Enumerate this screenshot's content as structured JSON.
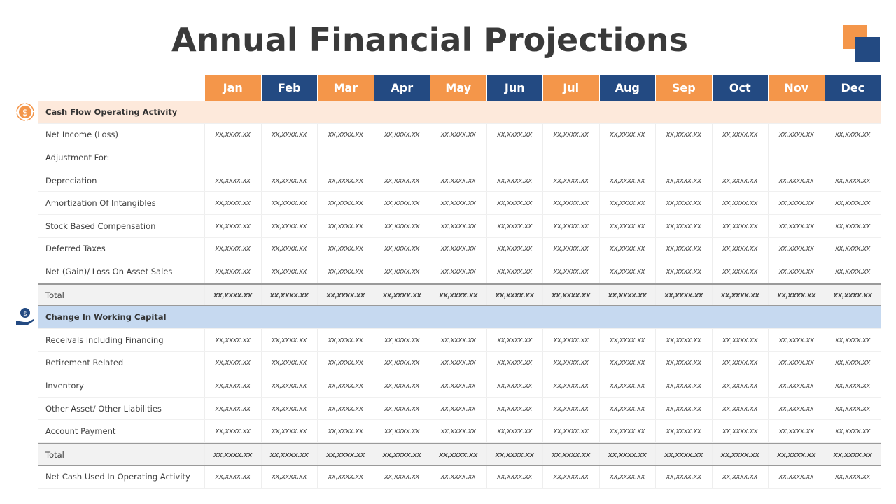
{
  "title": "Annual Financial Projections",
  "months": [
    "Jan",
    "Feb",
    "Mar",
    "Apr",
    "May",
    "Jun",
    "Jul",
    "Aug",
    "Sep",
    "Oct",
    "Nov",
    "Dec"
  ],
  "colors": {
    "orange": "#F4964A",
    "blue": "#234A82",
    "section_orange": "#FDE9DB",
    "section_blue": "#C6D9F0"
  },
  "sections": [
    {
      "title": "Cash Flow Operating Activity",
      "icon": "dollar-cycle-icon",
      "style": "o",
      "rows": [
        {
          "label": "Net Income (Loss)",
          "values": [
            "xx,xxxx.xx",
            "xx,xxxx.xx",
            "xx,xxxx.xx",
            "xx,xxxx.xx",
            "xx,xxxx.xx",
            "xx,xxxx.xx",
            "xx,xxxx.xx",
            "xx,xxxx.xx",
            "xx,xxxx.xx",
            "xx,xxxx.xx",
            "xx,xxxx.xx",
            "xx,xxxx.xx"
          ]
        },
        {
          "label": "Adjustment For:",
          "values": [
            "",
            "",
            "",
            "",
            "",
            "",
            "",
            "",
            "",
            "",
            "",
            ""
          ]
        },
        {
          "label": "Depreciation",
          "values": [
            "xx,xxxx.xx",
            "xx,xxxx.xx",
            "xx,xxxx.xx",
            "xx,xxxx.xx",
            "xx,xxxx.xx",
            "xx,xxxx.xx",
            "xx,xxxx.xx",
            "xx,xxxx.xx",
            "xx,xxxx.xx",
            "xx,xxxx.xx",
            "xx,xxxx.xx",
            "xx,xxxx.xx"
          ]
        },
        {
          "label": "Amortization Of  Intangibles",
          "values": [
            "xx,xxxx.xx",
            "xx,xxxx.xx",
            "xx,xxxx.xx",
            "xx,xxxx.xx",
            "xx,xxxx.xx",
            "xx,xxxx.xx",
            "xx,xxxx.xx",
            "xx,xxxx.xx",
            "xx,xxxx.xx",
            "xx,xxxx.xx",
            "xx,xxxx.xx",
            "xx,xxxx.xx"
          ]
        },
        {
          "label": "Stock Based Compensation",
          "values": [
            "xx,xxxx.xx",
            "xx,xxxx.xx",
            "xx,xxxx.xx",
            "xx,xxxx.xx",
            "xx,xxxx.xx",
            "xx,xxxx.xx",
            "xx,xxxx.xx",
            "xx,xxxx.xx",
            "xx,xxxx.xx",
            "xx,xxxx.xx",
            "xx,xxxx.xx",
            "xx,xxxx.xx"
          ]
        },
        {
          "label": "Deferred Taxes",
          "values": [
            "xx,xxxx.xx",
            "xx,xxxx.xx",
            "xx,xxxx.xx",
            "xx,xxxx.xx",
            "xx,xxxx.xx",
            "xx,xxxx.xx",
            "xx,xxxx.xx",
            "xx,xxxx.xx",
            "xx,xxxx.xx",
            "xx,xxxx.xx",
            "xx,xxxx.xx",
            "xx,xxxx.xx"
          ]
        },
        {
          "label": "Net (Gain)/ Loss On Asset Sales",
          "values": [
            "xx,xxxx.xx",
            "xx,xxxx.xx",
            "xx,xxxx.xx",
            "xx,xxxx.xx",
            "xx,xxxx.xx",
            "xx,xxxx.xx",
            "xx,xxxx.xx",
            "xx,xxxx.xx",
            "xx,xxxx.xx",
            "xx,xxxx.xx",
            "xx,xxxx.xx",
            "xx,xxxx.xx"
          ]
        }
      ],
      "total": {
        "label": "Total",
        "values": [
          "xx,xxxx.xx",
          "xx,xxxx.xx",
          "xx,xxxx.xx",
          "xx,xxxx.xx",
          "xx,xxxx.xx",
          "xx,xxxx.xx",
          "xx,xxxx.xx",
          "xx,xxxx.xx",
          "xx,xxxx.xx",
          "xx,xxxx.xx",
          "xx,xxxx.xx",
          "xx,xxxx.xx"
        ]
      }
    },
    {
      "title": "Change In Working Capital",
      "icon": "hand-coin-icon",
      "style": "b",
      "rows": [
        {
          "label": "Receivals including Financing",
          "values": [
            "xx,xxxx.xx",
            "xx,xxxx.xx",
            "xx,xxxx.xx",
            "xx,xxxx.xx",
            "xx,xxxx.xx",
            "xx,xxxx.xx",
            "xx,xxxx.xx",
            "xx,xxxx.xx",
            "xx,xxxx.xx",
            "xx,xxxx.xx",
            "xx,xxxx.xx",
            "xx,xxxx.xx"
          ]
        },
        {
          "label": "Retirement Related",
          "values": [
            "xx,xxxx.xx",
            "xx,xxxx.xx",
            "xx,xxxx.xx",
            "xx,xxxx.xx",
            "xx,xxxx.xx",
            "xx,xxxx.xx",
            "xx,xxxx.xx",
            "xx,xxxx.xx",
            "xx,xxxx.xx",
            "xx,xxxx.xx",
            "xx,xxxx.xx",
            "xx,xxxx.xx"
          ]
        },
        {
          "label": "Inventory",
          "values": [
            "xx,xxxx.xx",
            "xx,xxxx.xx",
            "xx,xxxx.xx",
            "xx,xxxx.xx",
            "xx,xxxx.xx",
            "xx,xxxx.xx",
            "xx,xxxx.xx",
            "xx,xxxx.xx",
            "xx,xxxx.xx",
            "xx,xxxx.xx",
            "xx,xxxx.xx",
            "xx,xxxx.xx"
          ]
        },
        {
          "label": "Other Asset/ Other Liabilities",
          "values": [
            "xx,xxxx.xx",
            "xx,xxxx.xx",
            "xx,xxxx.xx",
            "xx,xxxx.xx",
            "xx,xxxx.xx",
            "xx,xxxx.xx",
            "xx,xxxx.xx",
            "xx,xxxx.xx",
            "xx,xxxx.xx",
            "xx,xxxx.xx",
            "xx,xxxx.xx",
            "xx,xxxx.xx"
          ]
        },
        {
          "label": "Account Payment",
          "values": [
            "xx,xxxx.xx",
            "xx,xxxx.xx",
            "xx,xxxx.xx",
            "xx,xxxx.xx",
            "xx,xxxx.xx",
            "xx,xxxx.xx",
            "xx,xxxx.xx",
            "xx,xxxx.xx",
            "xx,xxxx.xx",
            "xx,xxxx.xx",
            "xx,xxxx.xx",
            "xx,xxxx.xx"
          ]
        }
      ],
      "total": {
        "label": "Total",
        "values": [
          "xx,xxxx.xx",
          "xx,xxxx.xx",
          "xx,xxxx.xx",
          "xx,xxxx.xx",
          "xx,xxxx.xx",
          "xx,xxxx.xx",
          "xx,xxxx.xx",
          "xx,xxxx.xx",
          "xx,xxxx.xx",
          "xx,xxxx.xx",
          "xx,xxxx.xx",
          "xx,xxxx.xx"
        ]
      }
    }
  ],
  "final": {
    "label": "Net Cash Used In Operating Activity",
    "values": [
      "xx,xxxx.xx",
      "xx,xxxx.xx",
      "xx,xxxx.xx",
      "xx,xxxx.xx",
      "xx,xxxx.xx",
      "xx,xxxx.xx",
      "xx,xxxx.xx",
      "xx,xxxx.xx",
      "xx,xxxx.xx",
      "xx,xxxx.xx",
      "xx,xxxx.xx",
      "xx,xxxx.xx"
    ]
  }
}
